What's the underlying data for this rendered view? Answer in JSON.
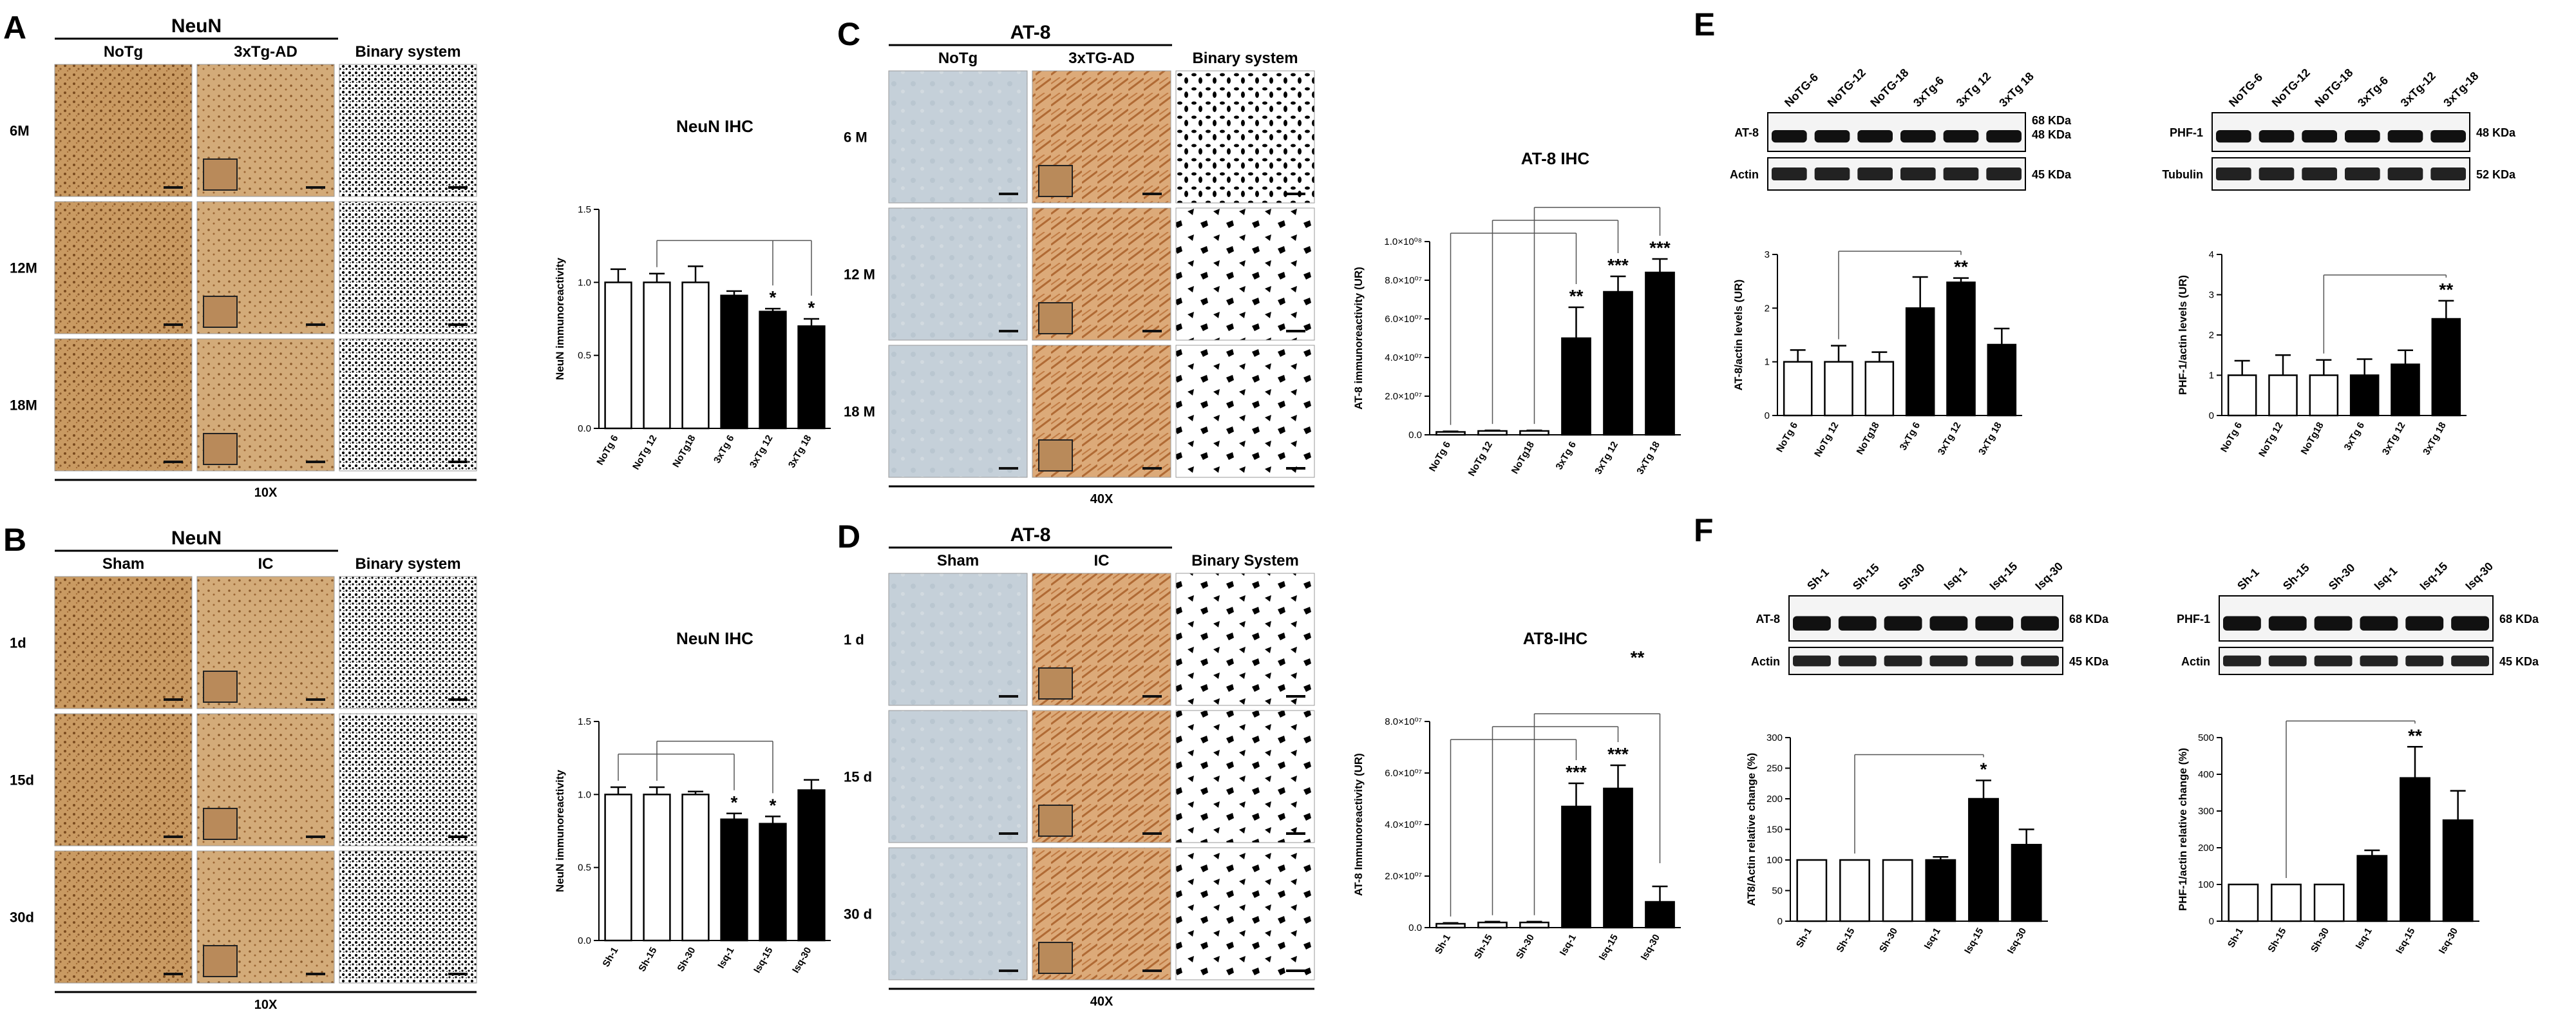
{
  "panels": {
    "A": {
      "label": "A",
      "stain": "NeuN",
      "cols": [
        "NoTg",
        "3xTg-AD",
        "Binary system"
      ],
      "rows": [
        "6M",
        "12M",
        "18M"
      ],
      "mag": "10X"
    },
    "B": {
      "label": "B",
      "stain": "NeuN",
      "cols": [
        "Sham",
        "IC",
        "Binary system"
      ],
      "rows": [
        "1d",
        "15d",
        "30d"
      ],
      "mag": "10X"
    },
    "C": {
      "label": "C",
      "stain": "AT-8",
      "cols": [
        "NoTg",
        "3xTG-AD",
        "Binary system"
      ],
      "rows": [
        "6 M",
        "12 M",
        "18 M"
      ],
      "mag": "40X"
    },
    "D": {
      "label": "D",
      "stain": "AT-8",
      "cols": [
        "Sham",
        "IC",
        "Binary System"
      ],
      "rows": [
        "1 d",
        "15 d",
        "30 d"
      ],
      "mag": "40X"
    },
    "E": {
      "label": "E",
      "blot1": {
        "lanes": [
          "NoTG-6",
          "NoTG-12",
          "NoTG-18",
          "3xTg-6",
          "3xTg 12",
          "3xTg 18"
        ],
        "protein": "AT-8",
        "control": "Actin",
        "sizes": [
          "68 KDa",
          "48 KDa"
        ],
        "control_size": "45 KDa"
      },
      "blot2": {
        "lanes": [
          "NoTG-6",
          "NoTG-12",
          "NoTG-18",
          "3xTg-6",
          "3xTg-12",
          "3xTg-18"
        ],
        "protein": "PHF-1",
        "control": "Tubulin",
        "size": "48 KDa",
        "control_size": "52 KDa"
      }
    },
    "F": {
      "label": "F",
      "blot1": {
        "lanes": [
          "Sh-1",
          "Sh-15",
          "Sh-30",
          "Isq-1",
          "Isq-15",
          "Isq-30"
        ],
        "protein": "AT-8",
        "control": "Actin",
        "size": "68 KDa",
        "control_size": "45 KDa"
      },
      "blot2": {
        "lanes": [
          "Sh-1",
          "Sh-15",
          "Sh-30",
          "Isq-1",
          "Isq-15",
          "Isq-30"
        ],
        "protein": "PHF-1",
        "control": "Actin",
        "size": "68 KDa",
        "control_size": "45 KDa"
      }
    }
  },
  "chart_data": [
    {
      "id": "chartA",
      "type": "bar",
      "title": "NeuN IHC",
      "ylabel": "NeuN immunoreactivity",
      "categories": [
        "NoTg 6",
        "NoTg 12",
        "NoTg18",
        "3xTg 6",
        "3xTg 12",
        "3xTg 18"
      ],
      "values": [
        1.0,
        1.0,
        1.0,
        0.91,
        0.8,
        0.7
      ],
      "errors": [
        0.09,
        0.06,
        0.11,
        0.03,
        0.02,
        0.05
      ],
      "fills": [
        "white",
        "white",
        "white",
        "black",
        "black",
        "black"
      ],
      "ylim": [
        0,
        1.5
      ],
      "yticks": [
        "0.0",
        "0.5",
        "1.0",
        "1.5"
      ],
      "ytick_values": [
        0,
        0.5,
        1.0,
        1.5
      ],
      "annotations": [
        "",
        "",
        "",
        "",
        "*",
        "*"
      ],
      "brackets": [
        {
          "from": 1,
          "to": [
            4,
            5
          ]
        }
      ]
    },
    {
      "id": "chartB",
      "type": "bar",
      "title": "NeuN IHC",
      "ylabel": "NeuN immunoreactivity",
      "categories": [
        "Sh-1",
        "Sh-15",
        "Sh-30",
        "Isq-1",
        "Isq-15",
        "Isq-30"
      ],
      "values": [
        1.0,
        1.0,
        1.0,
        0.83,
        0.8,
        1.03
      ],
      "errors": [
        0.05,
        0.05,
        0.02,
        0.04,
        0.05,
        0.07
      ],
      "fills": [
        "white",
        "white",
        "white",
        "black",
        "black",
        "black"
      ],
      "ylim": [
        0,
        1.5
      ],
      "yticks": [
        "0.0",
        "0.5",
        "1.0",
        "1.5"
      ],
      "ytick_values": [
        0,
        0.5,
        1.0,
        1.5
      ],
      "annotations": [
        "",
        "",
        "",
        "*",
        "*",
        ""
      ],
      "brackets": [
        {
          "from": 0,
          "to": [
            3
          ]
        },
        {
          "from": 1,
          "to": [
            4
          ]
        }
      ]
    },
    {
      "id": "chartC",
      "type": "bar",
      "title": "AT-8 IHC",
      "ylabel": "AT-8 immunoreactivity (UR)",
      "categories": [
        "NoTg 6",
        "NoTg 12",
        "NoTg18",
        "3xTg 6",
        "3xTg 12",
        "3xTg 18"
      ],
      "values": [
        1500000.0,
        2000000.0,
        2000000.0,
        50000000.0,
        74000000.0,
        84000000.0
      ],
      "errors": [
        300000.0,
        300000.0,
        300000.0,
        16000000.0,
        8000000.0,
        7000000.0
      ],
      "fills": [
        "white",
        "white",
        "white",
        "black",
        "black",
        "black"
      ],
      "ylim": [
        0,
        100000000.0
      ],
      "ytick_values": [
        0,
        20000000.0,
        40000000.0,
        60000000.0,
        80000000.0,
        100000000.0
      ],
      "yticks": [
        "0.0",
        "2.0×10⁰⁷",
        "4.0×10⁰⁷",
        "6.0×10⁰⁷",
        "8.0×10⁰⁷",
        "1.0×10⁰⁸"
      ],
      "annotations": [
        "",
        "",
        "",
        "**",
        "***",
        "***"
      ],
      "brackets": [
        {
          "from": 0,
          "to": [
            3
          ]
        },
        {
          "from": 1,
          "to": [
            4
          ]
        },
        {
          "from": 2,
          "to": [
            5
          ]
        }
      ]
    },
    {
      "id": "chartD",
      "type": "bar",
      "title": "AT8-IHC",
      "ylabel": "AT-8 Immunoreactivity (UR)",
      "categories": [
        "Sh-1",
        "Sh-15",
        "Sh-30",
        "Isq-1",
        "Isq-15",
        "Isq-30"
      ],
      "values": [
        1500000.0,
        2000000.0,
        2000000.0,
        47000000.0,
        54000000.0,
        10000000.0
      ],
      "errors": [
        300000.0,
        300000.0,
        300000.0,
        9000000.0,
        9000000.0,
        6000000.0
      ],
      "fills": [
        "white",
        "white",
        "white",
        "black",
        "black",
        "black"
      ],
      "ylim": [
        0,
        80000000.0
      ],
      "ytick_values": [
        0,
        20000000.0,
        40000000.0,
        60000000.0,
        80000000.0
      ],
      "yticks": [
        "0.0",
        "2.0×10⁰⁷",
        "4.0×10⁰⁷",
        "6.0×10⁰⁷",
        "8.0×10⁰⁷"
      ],
      "annotations": [
        "",
        "",
        "",
        "***",
        "***",
        ""
      ],
      "top_annotation": "**",
      "brackets": [
        {
          "from": 0,
          "to": [
            3
          ]
        },
        {
          "from": 1,
          "to": [
            4
          ]
        },
        {
          "from": 2,
          "to": [
            5
          ]
        }
      ]
    },
    {
      "id": "chartE1",
      "type": "bar",
      "title": "",
      "ylabel": "AT-8/actin levels (UR)",
      "categories": [
        "NoTg 6",
        "NoTg 12",
        "NoTg18",
        "3xTg 6",
        "3xTg 12",
        "3xTg 18"
      ],
      "values": [
        1.0,
        1.0,
        1.0,
        2.0,
        2.48,
        1.32
      ],
      "errors": [
        0.22,
        0.3,
        0.18,
        0.58,
        0.08,
        0.3
      ],
      "fills": [
        "white",
        "white",
        "white",
        "black",
        "black",
        "black"
      ],
      "ylim": [
        0,
        3
      ],
      "yticks": [
        "0",
        "1",
        "2",
        "3"
      ],
      "ytick_values": [
        0,
        1,
        2,
        3
      ],
      "annotations": [
        "",
        "",
        "",
        "",
        "**",
        ""
      ],
      "brackets": [
        {
          "from": 1,
          "to": [
            4
          ]
        }
      ]
    },
    {
      "id": "chartE2",
      "type": "bar",
      "title": "",
      "ylabel": "PHF-1/actin levels (UR)",
      "categories": [
        "NoTg 6",
        "NoTg 12",
        "NoTg18",
        "3xTg 6",
        "3xTg 12",
        "3xTg 18"
      ],
      "values": [
        1.0,
        1.0,
        1.0,
        1.0,
        1.27,
        2.4
      ],
      "errors": [
        0.36,
        0.5,
        0.38,
        0.4,
        0.35,
        0.45
      ],
      "fills": [
        "white",
        "white",
        "white",
        "black",
        "black",
        "black"
      ],
      "ylim": [
        0,
        4
      ],
      "yticks": [
        "0",
        "1",
        "2",
        "3",
        "4"
      ],
      "ytick_values": [
        0,
        1,
        2,
        3,
        4
      ],
      "annotations": [
        "",
        "",
        "",
        "",
        "",
        "**"
      ],
      "brackets": [
        {
          "from": 2,
          "to": [
            5
          ]
        }
      ]
    },
    {
      "id": "chartF1",
      "type": "bar",
      "title": "",
      "ylabel": "AT8/Actin relative change (%)",
      "categories": [
        "Sh-1",
        "Sh-15",
        "Sh-30",
        "Isq-1",
        "Isq-15",
        "Isq-30"
      ],
      "values": [
        100,
        100,
        100,
        100,
        200,
        125
      ],
      "errors": [
        0,
        0,
        0,
        5,
        30,
        25
      ],
      "fills": [
        "white",
        "white",
        "white",
        "black",
        "black",
        "black"
      ],
      "ylim": [
        0,
        300
      ],
      "yticks": [
        "0",
        "50",
        "100",
        "150",
        "200",
        "250",
        "300"
      ],
      "ytick_values": [
        0,
        50,
        100,
        150,
        200,
        250,
        300
      ],
      "annotations": [
        "",
        "",
        "",
        "",
        "*",
        ""
      ],
      "brackets": [
        {
          "from": 1,
          "to": [
            4
          ]
        }
      ]
    },
    {
      "id": "chartF2",
      "type": "bar",
      "title": "",
      "ylabel": "PHF-1/actin relative change (%)",
      "categories": [
        "Sh-1",
        "Sh-15",
        "Sh-30",
        "Isq-1",
        "Isq-15",
        "Isq-30"
      ],
      "values": [
        100,
        100,
        100,
        178,
        390,
        275
      ],
      "errors": [
        0,
        0,
        0,
        15,
        85,
        80
      ],
      "fills": [
        "white",
        "white",
        "white",
        "black",
        "black",
        "black"
      ],
      "ylim": [
        0,
        500
      ],
      "yticks": [
        "0",
        "100",
        "200",
        "300",
        "400",
        "500"
      ],
      "ytick_values": [
        0,
        100,
        200,
        300,
        400,
        500
      ],
      "annotations": [
        "",
        "",
        "",
        "",
        "**",
        ""
      ],
      "brackets": [
        {
          "from": 1,
          "to": [
            4
          ]
        }
      ]
    }
  ]
}
